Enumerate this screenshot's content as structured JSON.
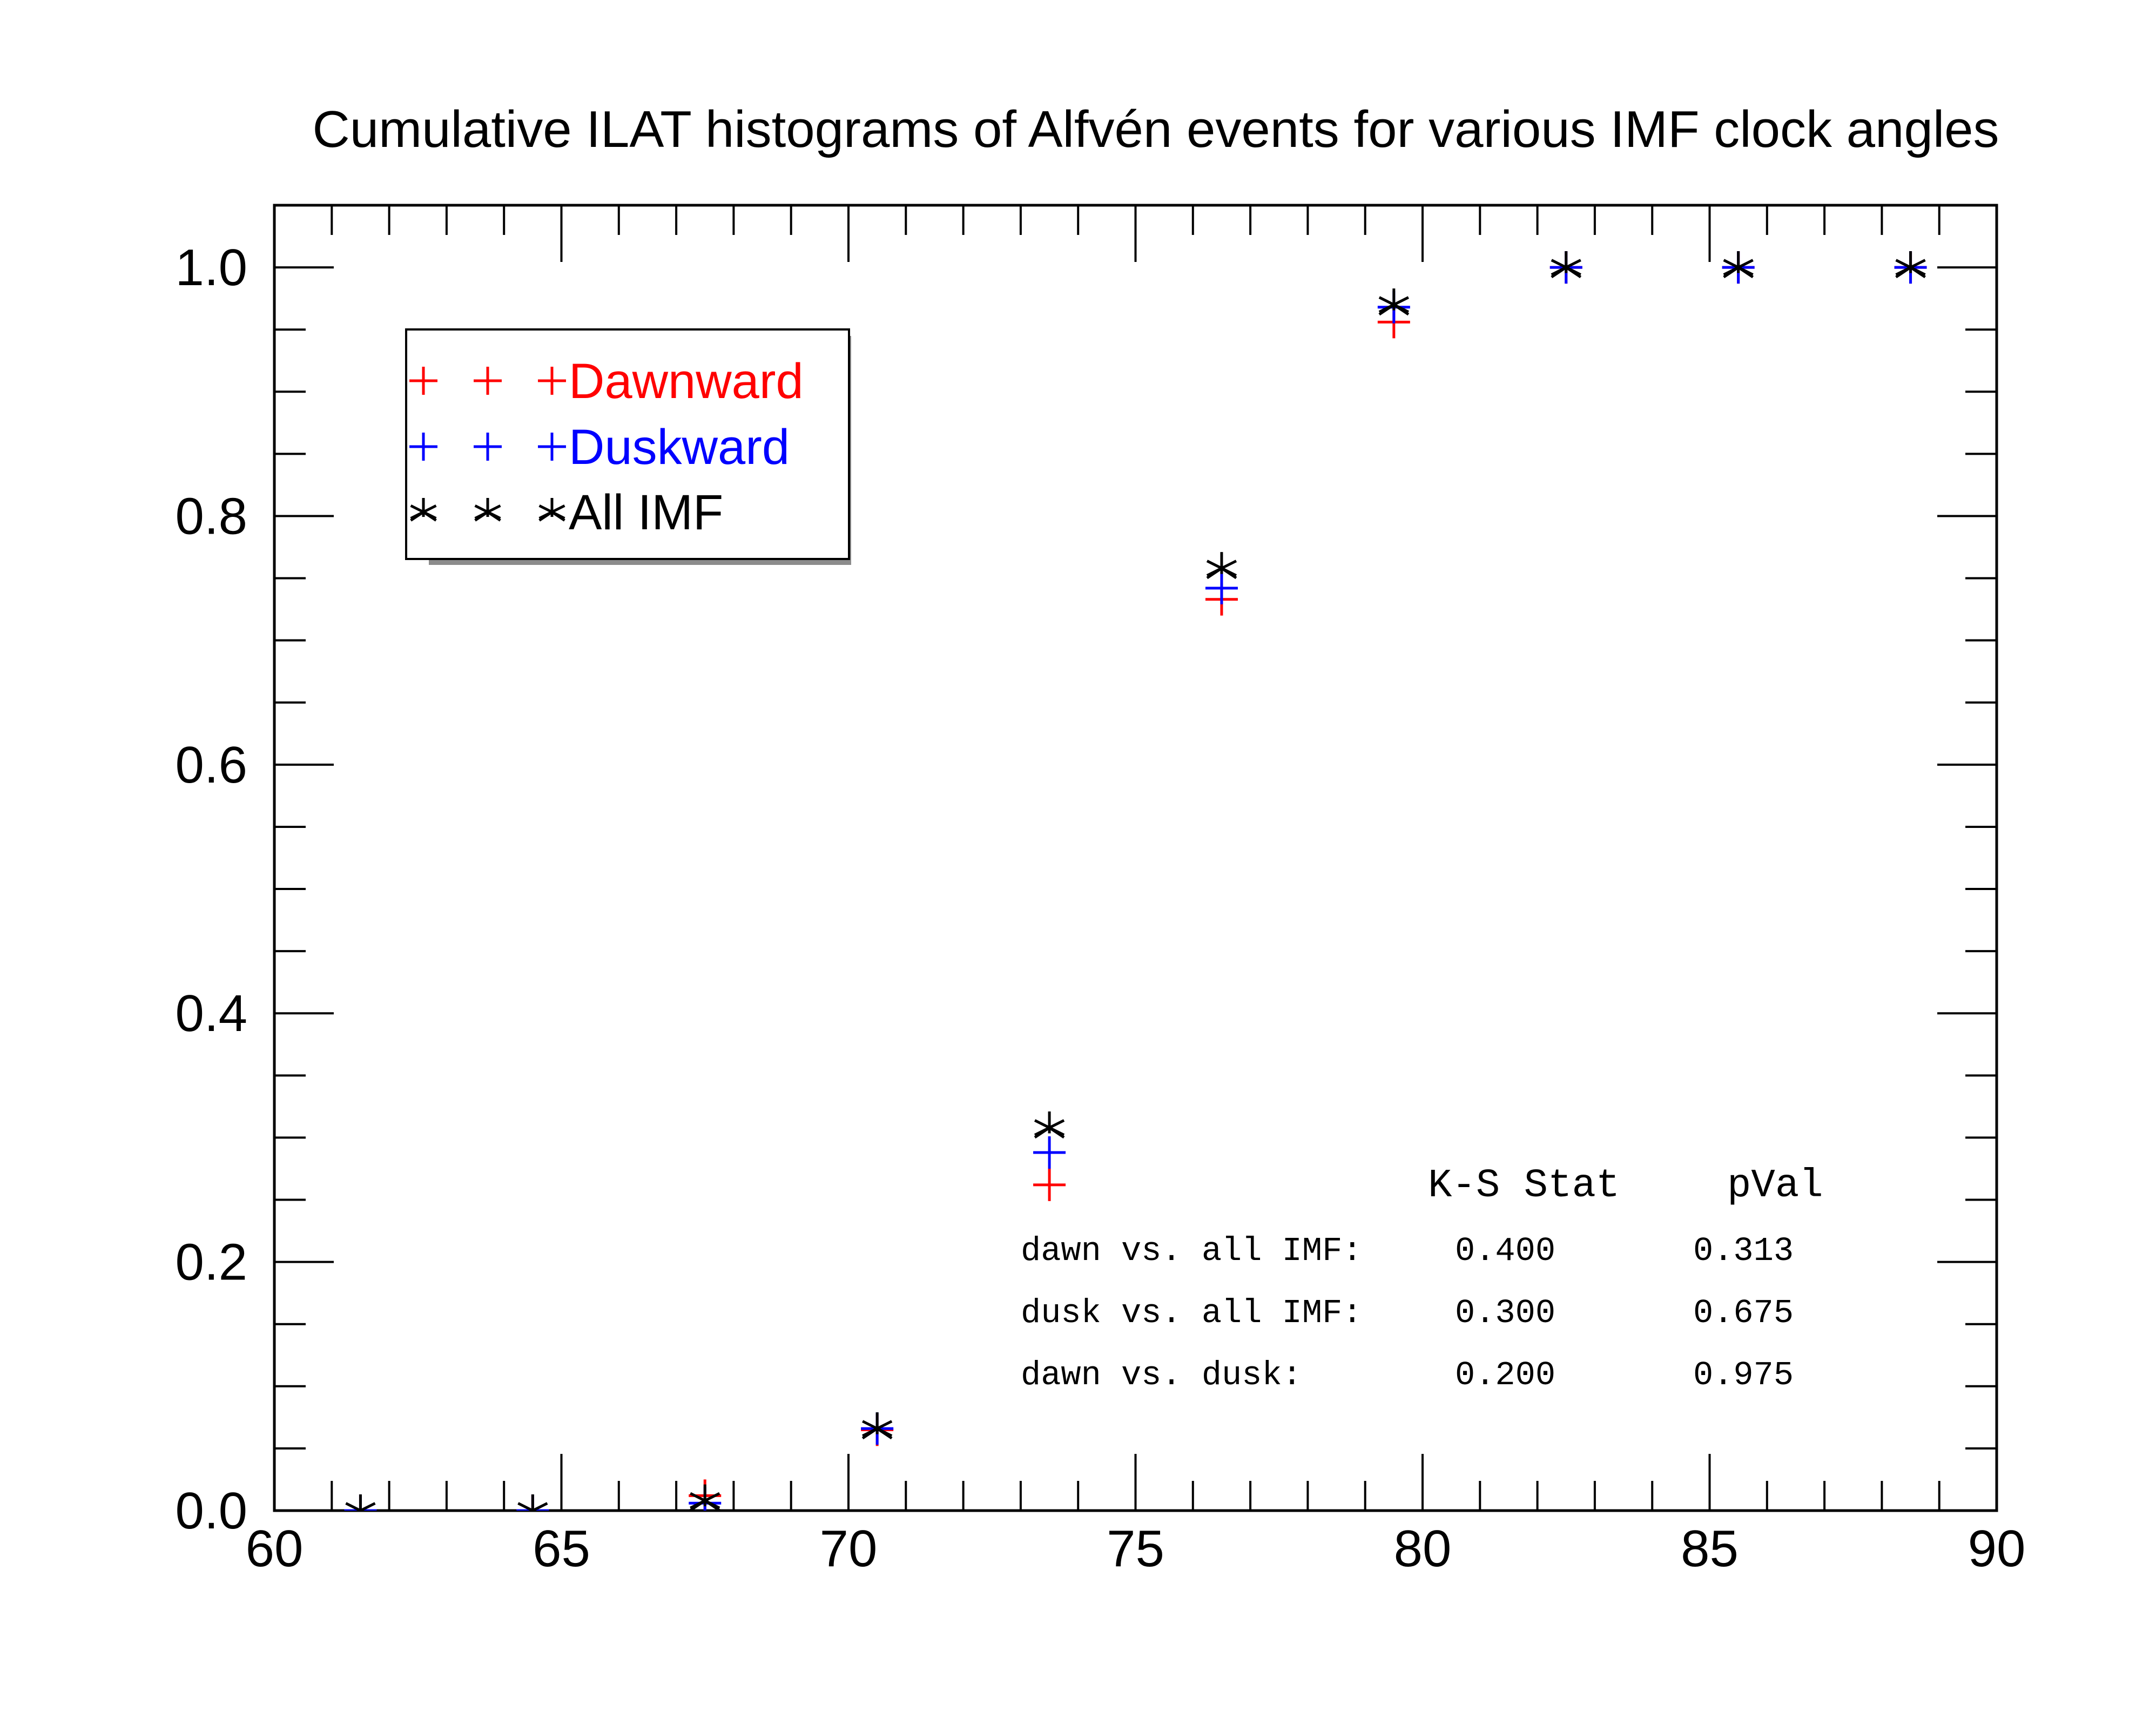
{
  "chart_data": {
    "type": "scatter",
    "title": "Cumulative ILAT histograms of Alfvén events for various IMF clock angles",
    "xlabel": "",
    "ylabel": "",
    "xlim": [
      60,
      90
    ],
    "ylim": [
      0,
      1.05
    ],
    "x_ticks": [
      "60",
      "65",
      "70",
      "75",
      "80",
      "85",
      "90"
    ],
    "y_ticks": [
      "0.0",
      "0.2",
      "0.4",
      "0.6",
      "0.8",
      "1.0"
    ],
    "grid": false,
    "legend": "top-left",
    "x": [
      61.5,
      64.5,
      67.5,
      70.5,
      73.5,
      76.5,
      79.5,
      82.5,
      85.5,
      88.5
    ],
    "series": [
      {
        "name": "Dawnward",
        "marker": "plus",
        "color": "#ff0000",
        "values": [
          0.0,
          0.0,
          0.012,
          0.065,
          0.262,
          0.733,
          0.956,
          1.0,
          1.0,
          1.0
        ]
      },
      {
        "name": "Duskward",
        "marker": "plus",
        "color": "#0000ff",
        "values": [
          0.0,
          0.0,
          0.006,
          0.066,
          0.288,
          0.742,
          0.968,
          1.0,
          1.0,
          1.0
        ]
      },
      {
        "name": "All IMF",
        "marker": "star",
        "color": "#000000",
        "values": [
          0.0,
          0.0,
          0.008,
          0.066,
          0.308,
          0.758,
          0.97,
          1.0,
          1.0,
          1.0
        ]
      }
    ],
    "annotations": {
      "header": [
        "K-S Stat",
        "pVal"
      ],
      "rows": [
        {
          "label": "dawn vs. all IMF:",
          "ks": "0.400",
          "pval": "0.313"
        },
        {
          "label": "dusk vs. all IMF:",
          "ks": "0.300",
          "pval": "0.675"
        },
        {
          "label": "dawn vs. dusk:",
          "ks": "0.200",
          "pval": "0.975"
        }
      ]
    }
  }
}
